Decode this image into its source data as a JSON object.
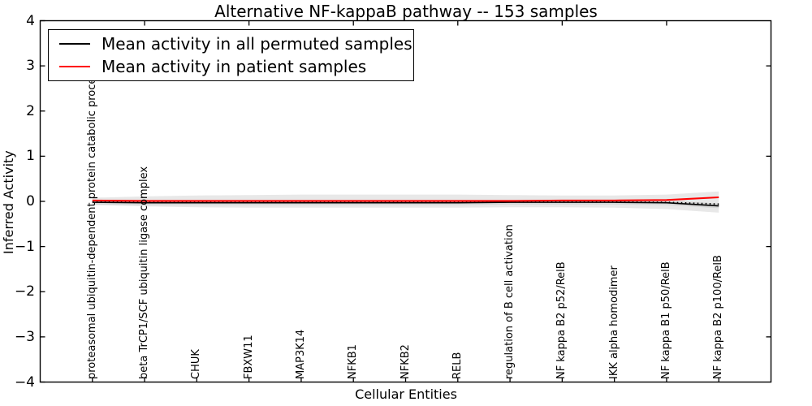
{
  "legend": {
    "position": "upper left",
    "entries": [
      {
        "label": "Mean activity in all permuted samples",
        "color": "#000000"
      },
      {
        "label": "Mean activity in patient samples",
        "color": "#ff0000"
      }
    ]
  },
  "chart_data": {
    "type": "line",
    "title": "Alternative NF-kappaB pathway -- 153 samples",
    "xlabel": "Cellular Entities",
    "ylabel": "Inferred Activity",
    "xlim": [
      -1,
      13
    ],
    "ylim": [
      -4,
      4
    ],
    "grid": false,
    "legend_position": "upper left",
    "y_ticks": [
      4,
      3,
      2,
      1,
      0,
      -1,
      -2,
      -3,
      -4
    ],
    "y_tick_labels": [
      "4",
      "3",
      "2",
      "1",
      "0",
      "−1",
      "−2",
      "−3",
      "−4"
    ],
    "categories": [
      "proteasomal ubiquitin-dependent protein catabolic process",
      "beta TrCP1/SCF ubiquitin ligase complex",
      "CHUK",
      "FBXW11",
      "MAP3K14",
      "NFKB1",
      "NFKB2",
      "RELB",
      "regulation of B cell activation",
      "NF kappa B2 p52/RelB",
      "IKK alpha homodimer",
      "NF kappa B1 p50/RelB",
      "NF kappa B2 p100/RelB"
    ],
    "series": [
      {
        "name": "Mean activity in all permuted samples",
        "color": "#000000",
        "style": "solid",
        "width": 1.6,
        "values": [
          -0.02,
          -0.03,
          -0.03,
          -0.03,
          -0.03,
          -0.03,
          -0.03,
          -0.03,
          -0.02,
          -0.02,
          -0.02,
          -0.03,
          -0.1
        ]
      },
      {
        "name": "(unlabeled dotted line)",
        "color": "#000000",
        "style": "dotted",
        "width": 1.8,
        "values": [
          -0.01,
          -0.02,
          -0.02,
          -0.02,
          -0.02,
          -0.02,
          -0.02,
          -0.02,
          -0.01,
          -0.01,
          -0.01,
          -0.02,
          -0.06
        ]
      },
      {
        "name": "Mean activity in patient samples",
        "color": "#ff0000",
        "style": "solid",
        "width": 2.1,
        "values": [
          0.02,
          0.01,
          0.01,
          0.01,
          0.01,
          0.01,
          0.01,
          0.01,
          0.01,
          0.02,
          0.02,
          0.03,
          0.09
        ]
      }
    ],
    "bands": [
      {
        "name": "outer",
        "color": "#e8e8e8",
        "upper": [
          0.08,
          0.11,
          0.13,
          0.14,
          0.15,
          0.15,
          0.15,
          0.15,
          0.14,
          0.13,
          0.13,
          0.15,
          0.22
        ],
        "lower": [
          -0.08,
          -0.11,
          -0.13,
          -0.14,
          -0.14,
          -0.14,
          -0.14,
          -0.14,
          -0.13,
          -0.13,
          -0.14,
          -0.17,
          -0.25
        ]
      },
      {
        "name": "inner",
        "color": "#d6d6d6",
        "upper": [
          0.03,
          0.02,
          0.02,
          0.02,
          0.02,
          0.02,
          0.02,
          0.02,
          0.03,
          0.03,
          0.03,
          0.02,
          -0.05
        ],
        "lower": [
          -0.07,
          -0.08,
          -0.08,
          -0.08,
          -0.08,
          -0.08,
          -0.08,
          -0.08,
          -0.07,
          -0.07,
          -0.07,
          -0.08,
          -0.15
        ]
      }
    ]
  }
}
